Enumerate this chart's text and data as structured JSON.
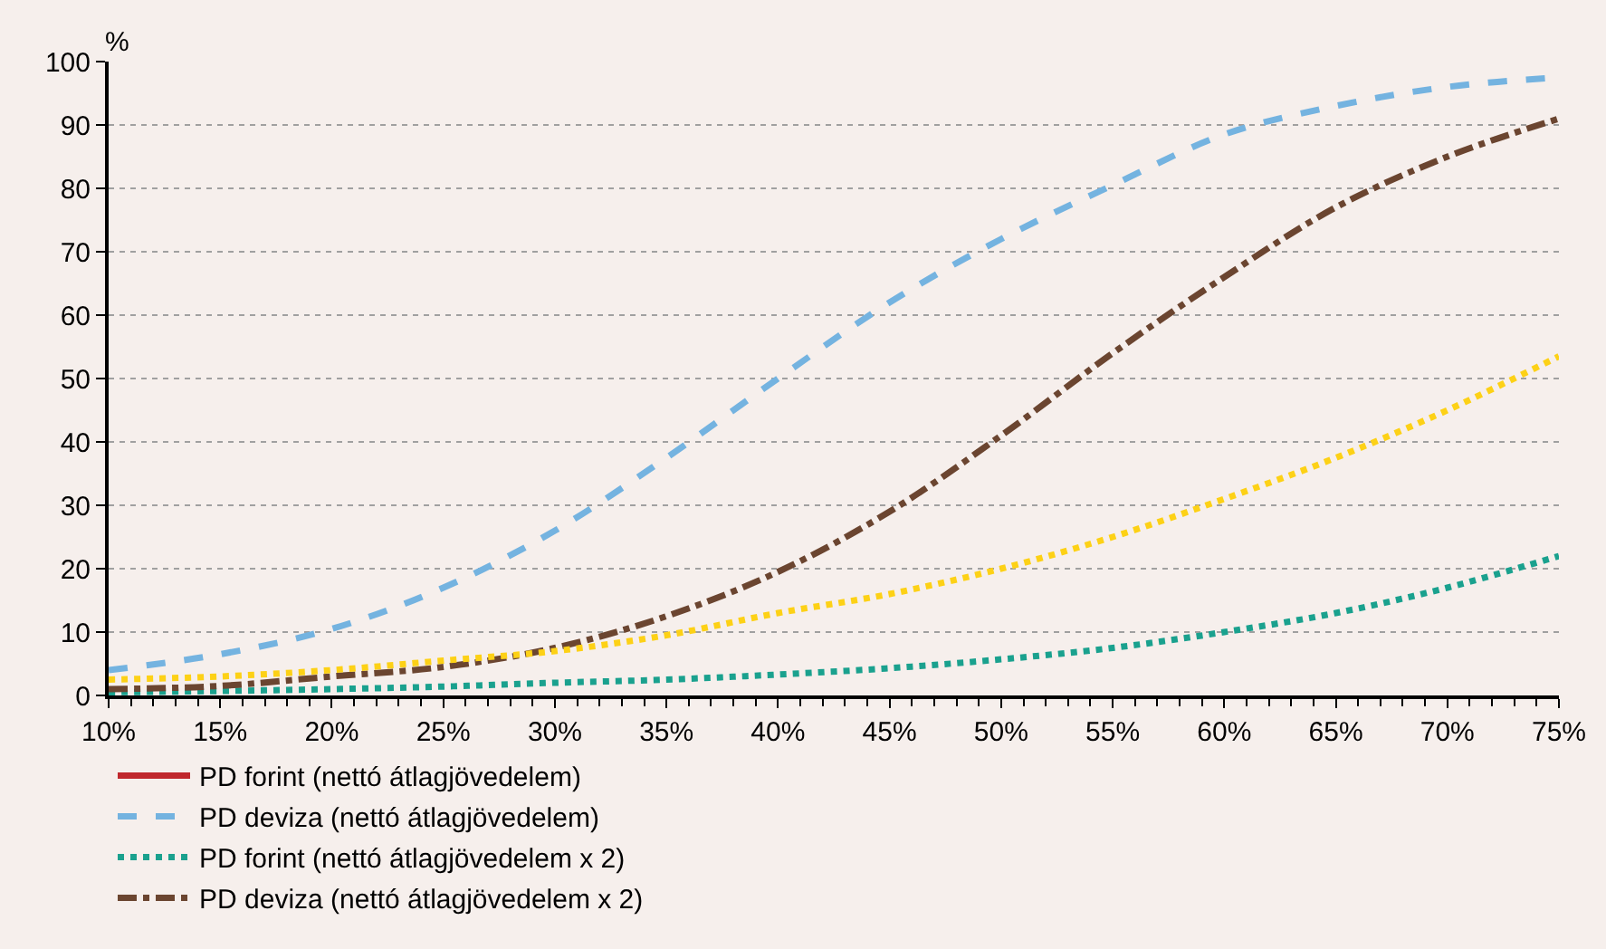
{
  "chart_data": {
    "type": "line",
    "ylabel": "%",
    "x": [
      10,
      15,
      20,
      25,
      30,
      35,
      40,
      45,
      50,
      55,
      60,
      65,
      70,
      75
    ],
    "series": [
      {
        "name": "PD forint (nettó átlagjövedelem)",
        "color": "#c0282d",
        "line_style": "solid",
        "values": [
          null,
          null,
          null,
          null,
          null,
          null,
          null,
          null,
          null,
          null,
          null,
          null,
          null,
          null
        ]
      },
      {
        "name": "PD deviza (nettó átlagjövedelem)",
        "color": "#74b3e0",
        "line_style": "dashed",
        "values": [
          4,
          6.5,
          10.5,
          17,
          26,
          37.5,
          50,
          62,
          72,
          80.5,
          88.5,
          93,
          96,
          97.5
        ]
      },
      {
        "name": "PD forint (nettó átlagjövedelem x 2)",
        "color": "#1aa18e",
        "line_style": "dotted",
        "values": [
          0.5,
          0.7,
          1,
          1.4,
          2,
          2.5,
          3.3,
          4.3,
          5.7,
          7.5,
          10,
          13,
          17,
          22
        ]
      },
      {
        "name": "PD deviza (nettó átlagjövedelem x 2)",
        "color": "#6b4530",
        "line_style": "dashdot",
        "values": [
          1,
          1.5,
          3,
          4.5,
          7.5,
          12.5,
          19.5,
          29,
          41,
          54,
          66,
          77,
          85,
          91
        ]
      },
      {
        "color": "#fdd116",
        "line_style": "dotted",
        "values": [
          2.5,
          3,
          4,
          5.5,
          7,
          9.5,
          13,
          16,
          20,
          25,
          31,
          37.5,
          45,
          53.5
        ]
      }
    ],
    "xlim": [
      10,
      75
    ],
    "ylim": [
      0,
      100
    ],
    "xticks": [
      {
        "value": 10,
        "label": "10%"
      },
      {
        "value": 15,
        "label": "15%"
      },
      {
        "value": 20,
        "label": "20%"
      },
      {
        "value": 25,
        "label": "25%"
      },
      {
        "value": 30,
        "label": "30%"
      },
      {
        "value": 35,
        "label": "35%"
      },
      {
        "value": 40,
        "label": "40%"
      },
      {
        "value": 45,
        "label": "45%"
      },
      {
        "value": 50,
        "label": "50%"
      },
      {
        "value": 55,
        "label": "55%"
      },
      {
        "value": 60,
        "label": "60%"
      },
      {
        "value": 65,
        "label": "65%"
      },
      {
        "value": 70,
        "label": "70%"
      },
      {
        "value": 75,
        "label": "75%"
      }
    ],
    "yticks": [
      0,
      10,
      20,
      30,
      40,
      50,
      60,
      70,
      80,
      90,
      100
    ],
    "grid": "y",
    "legend": "bottom left",
    "marker": "none"
  }
}
